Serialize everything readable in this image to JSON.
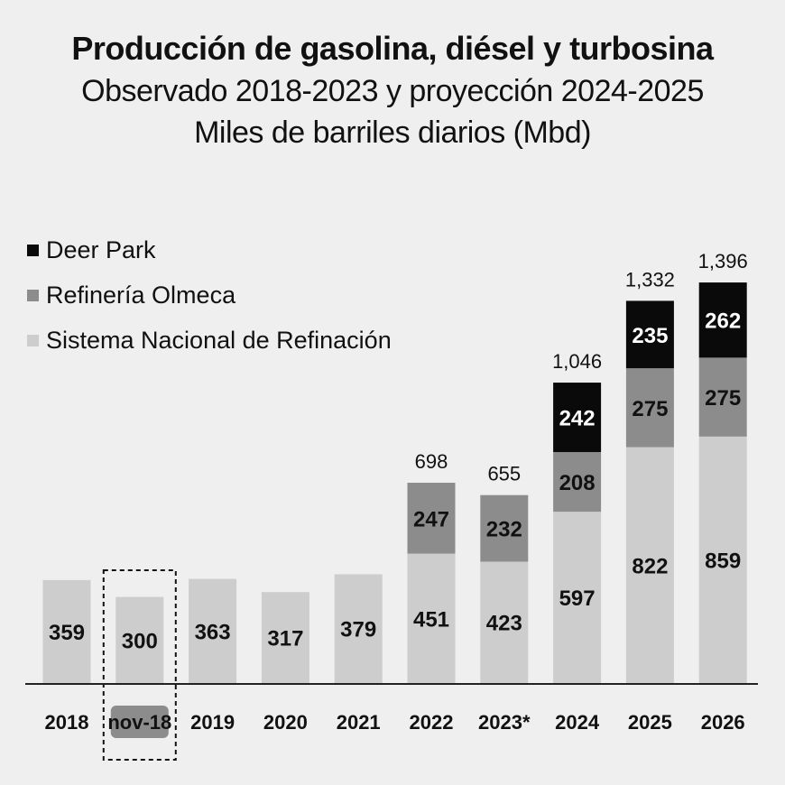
{
  "header": {
    "title": "Producción de gasolina, diésel y turbosina",
    "subtitle": "Observado 2018-2023 y proyección 2024-2025",
    "unit": "Miles de barriles diarios (Mbd)"
  },
  "legend": [
    {
      "label": "Deer Park",
      "color": "#0a0a0a"
    },
    {
      "label": "Refinería Olmeca",
      "color": "#8c8c8c"
    },
    {
      "label": "Sistema Nacional de Refinación",
      "color": "#cdcdcd"
    }
  ],
  "chart_data": {
    "type": "bar",
    "stacked": true,
    "categories": [
      "2018",
      "nov-18",
      "2019",
      "2020",
      "2021",
      "2022",
      "2023*",
      "2024",
      "2025",
      "2026"
    ],
    "highlighted_category": "nov-18",
    "series": [
      {
        "name": "Sistema Nacional de Refinación",
        "color": "#cdcdcd",
        "values": [
          359,
          300,
          363,
          317,
          379,
          451,
          423,
          597,
          822,
          859
        ]
      },
      {
        "name": "Refinería Olmeca",
        "color": "#8c8c8c",
        "values": [
          null,
          null,
          null,
          null,
          null,
          247,
          232,
          208,
          275,
          275
        ]
      },
      {
        "name": "Deer Park",
        "color": "#0a0a0a",
        "values": [
          null,
          null,
          null,
          null,
          null,
          null,
          null,
          242,
          235,
          262
        ]
      }
    ],
    "totals": [
      "",
      "",
      "",
      "",
      "",
      "698",
      "655",
      "1,046",
      "1,332",
      "1,396"
    ],
    "title": "Producción de gasolina, diésel y turbosina",
    "ylabel": "Miles de barriles diarios (Mbd)",
    "legend_position": "top-left",
    "grid": false
  }
}
